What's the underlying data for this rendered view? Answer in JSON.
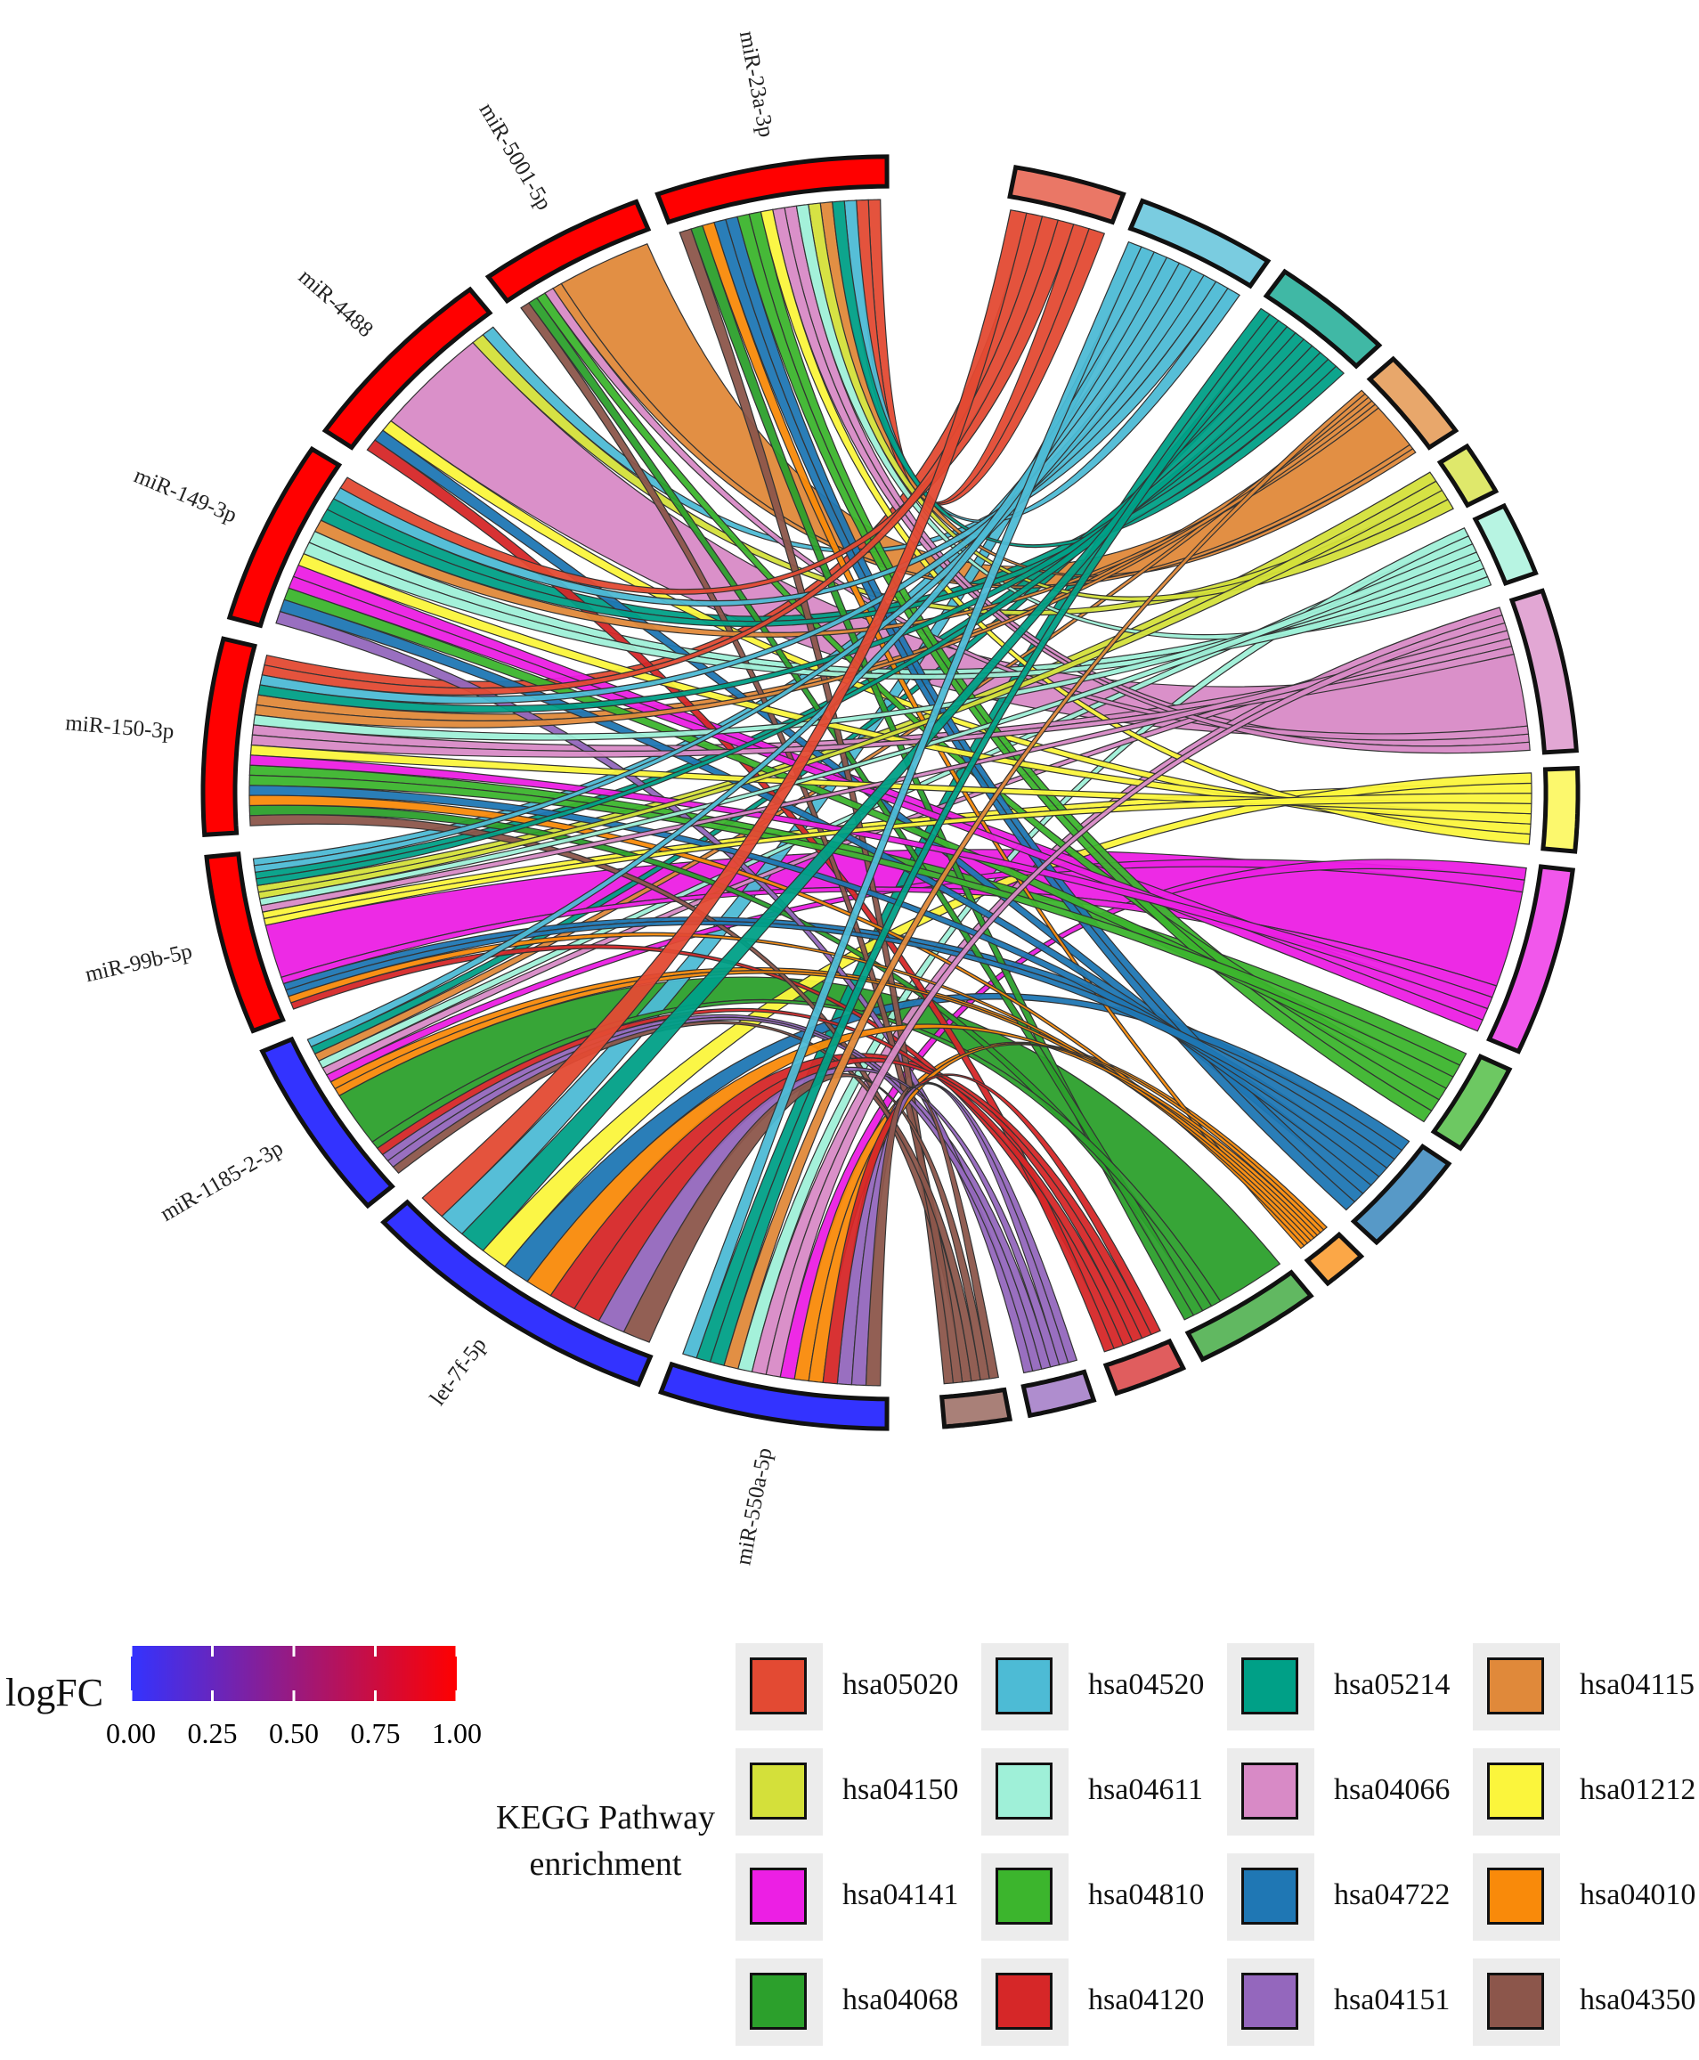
{
  "chart_data": {
    "type": "chord",
    "title": "",
    "mirnas": [
      {
        "name": "miR-23a-3p",
        "logFC": 1.0
      },
      {
        "name": "miR-5001-5p",
        "logFC": 1.0
      },
      {
        "name": "miR-4488",
        "logFC": 1.0
      },
      {
        "name": "miR-149-3p",
        "logFC": 1.0
      },
      {
        "name": "miR-150-3p",
        "logFC": 1.0
      },
      {
        "name": "miR-99b-5p",
        "logFC": 1.0
      },
      {
        "name": "miR-1185-2-3p",
        "logFC": 0.0
      },
      {
        "name": "let-7f-5p",
        "logFC": 0.0
      },
      {
        "name": "miR-550a-5p",
        "logFC": 0.0
      }
    ],
    "pathways": [
      {
        "id": "hsa05020",
        "color": "#E34A33"
      },
      {
        "id": "hsa04520",
        "color": "#4DBBD5"
      },
      {
        "id": "hsa05214",
        "color": "#00A087"
      },
      {
        "id": "hsa04115",
        "color": "#E0893A"
      },
      {
        "id": "hsa04150",
        "color": "#D4E03A"
      },
      {
        "id": "hsa04611",
        "color": "#9FF0D8"
      },
      {
        "id": "hsa04066",
        "color": "#D88AC6"
      },
      {
        "id": "hsa01212",
        "color": "#FBF53C"
      },
      {
        "id": "hsa04141",
        "color": "#EC1FE4"
      },
      {
        "id": "hsa04810",
        "color": "#3CB52D"
      },
      {
        "id": "hsa04722",
        "color": "#1F77B4"
      },
      {
        "id": "hsa04010",
        "color": "#F98A0A"
      },
      {
        "id": "hsa04068",
        "color": "#2CA02C"
      },
      {
        "id": "hsa04120",
        "color": "#D62728"
      },
      {
        "id": "hsa04151",
        "color": "#9467BD"
      },
      {
        "id": "hsa04350",
        "color": "#8C564B"
      }
    ],
    "colorbar": {
      "title": "logFC",
      "low_color": "#3333FF",
      "high_color": "#FF0000",
      "range": [
        0,
        1
      ],
      "ticks": [
        "0.00",
        "0.25",
        "0.50",
        "0.75",
        "1.00"
      ]
    },
    "legend": {
      "title_line1": "KEGG Pathway",
      "title_line2": "enrichment",
      "placement": "bottom-right"
    }
  }
}
